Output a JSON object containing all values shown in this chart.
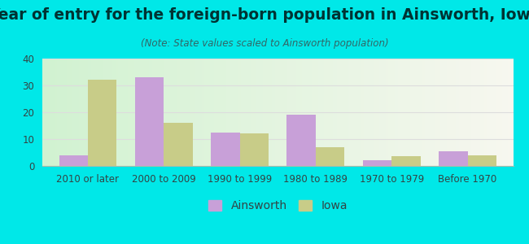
{
  "title": "Year of entry for the foreign-born population in Ainsworth, Iowa",
  "subtitle": "(Note: State values scaled to Ainsworth population)",
  "categories": [
    "2010 or later",
    "2000 to 2009",
    "1990 to 1999",
    "1980 to 1989",
    "1970 to 1979",
    "Before 1970"
  ],
  "ainsworth_values": [
    4,
    33,
    12.5,
    19,
    2,
    5.5
  ],
  "iowa_values": [
    32,
    16,
    12,
    7,
    3.5,
    4
  ],
  "ainsworth_color": "#c8a0d8",
  "iowa_color": "#c8cc88",
  "background_outer": "#00e8e8",
  "title_color": "#003333",
  "subtitle_color": "#336666",
  "ylim": [
    0,
    40
  ],
  "yticks": [
    0,
    10,
    20,
    30,
    40
  ],
  "bar_width": 0.38,
  "title_fontsize": 13.5,
  "subtitle_fontsize": 8.5,
  "tick_fontsize": 8.5,
  "legend_fontsize": 10
}
